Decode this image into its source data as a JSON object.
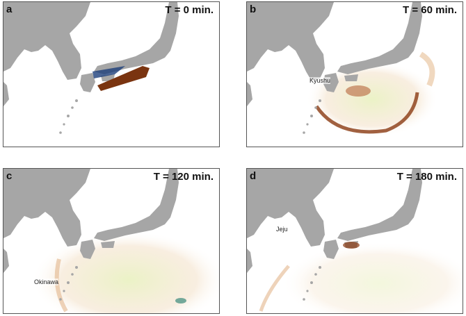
{
  "panels": [
    {
      "letter": "a",
      "time": "T = 0 min."
    },
    {
      "letter": "b",
      "time": "T = 60 min.",
      "labels": [
        "Kyushu"
      ]
    },
    {
      "letter": "c",
      "time": "T = 120 min.",
      "labels": [
        "Okinawa"
      ]
    },
    {
      "letter": "d",
      "time": "T = 180 min.",
      "labels": [
        "Jeju"
      ]
    }
  ]
}
